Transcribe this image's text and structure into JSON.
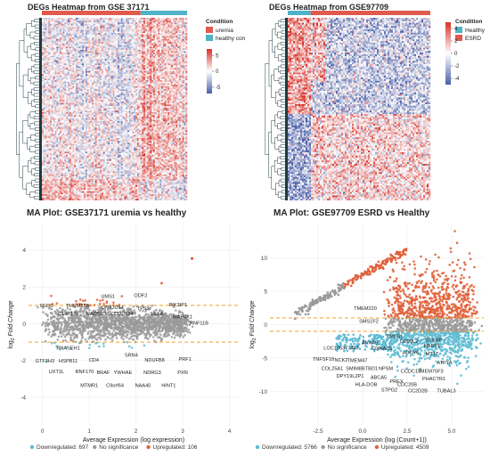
{
  "chart_data": [
    {
      "type": "heatmap",
      "title": "DEGs Heatmap from GSE 37171",
      "legend_title": "Condition",
      "legend": [
        {
          "label": "uremia",
          "color": "#e05a4e"
        },
        {
          "label": "healthy control",
          "color": "#4fb3c8"
        }
      ],
      "colorbar_ticks": [
        5,
        0,
        -5
      ],
      "colorbar_range": [
        -7,
        7
      ],
      "condition_split": 0.68,
      "colors": {
        "high": "#d73027",
        "mid": "#ffffff",
        "low": "#4a5fa8"
      }
    },
    {
      "type": "heatmap",
      "title": "DEGs Heatmap from GSE97709",
      "legend_title": "Condition",
      "legend": [
        {
          "label": "Healthy",
          "color": "#4fb3c8"
        },
        {
          "label": "ESRD",
          "color": "#e05a4e"
        }
      ],
      "colorbar_ticks": [
        4,
        2,
        0,
        -2,
        -4
      ],
      "colorbar_range": [
        -5,
        5
      ],
      "condition_split": 0.16,
      "colors": {
        "high": "#d73027",
        "mid": "#ffffff",
        "low": "#4a5fa8"
      }
    },
    {
      "type": "scatter",
      "title": "MA Plot: GSE37171 uremia vs healthy",
      "xlabel": "Average Expression (log expression)",
      "ylabel_main": "log",
      "ylabel_sub": "2",
      "ylabel_rest": " Fold Change",
      "xlim": [
        -0.3,
        4.2
      ],
      "ylim": [
        -5.5,
        5.4
      ],
      "xticks": [
        0,
        1,
        2,
        3,
        4
      ],
      "yticks": [
        -4,
        -2,
        0,
        2,
        4
      ],
      "thresholds": [
        1,
        -1
      ],
      "legend": [
        {
          "label": "Downregulated: 697",
          "color": "#5fbcd3"
        },
        {
          "label": "No significance",
          "color": "#999999"
        },
        {
          "label": "Upregulated: 106",
          "color": "#e0613a"
        }
      ],
      "annotations": [
        {
          "label": "UMS1",
          "x": 1.4,
          "y": 1.4
        },
        {
          "label": "ODF2",
          "x": 2.1,
          "y": 1.45
        },
        {
          "label": "PIK3IP1",
          "x": 2.9,
          "y": 0.95
        },
        {
          "label": "TGDS",
          "x": 0.08,
          "y": 0.9
        },
        {
          "label": "TMEM33B",
          "x": 0.75,
          "y": 0.9
        },
        {
          "label": "DNAJC14",
          "x": 1.5,
          "y": 0.8
        },
        {
          "label": "TP53",
          "x": 2.15,
          "y": 0.75
        },
        {
          "label": "C1orf174",
          "x": 0.55,
          "y": 0.45
        },
        {
          "label": "RAD51D",
          "x": 1.15,
          "y": 0.45
        },
        {
          "label": "CCDC134",
          "x": 1.7,
          "y": 0.45
        },
        {
          "label": "RELA",
          "x": 2.45,
          "y": 0.45
        },
        {
          "label": "MAP4K1",
          "x": 3.0,
          "y": 0.3
        },
        {
          "label": "RNF11B",
          "x": 3.35,
          "y": -0.05
        },
        {
          "label": "RNASEH1",
          "x": 0.55,
          "y": -1.4
        },
        {
          "label": "HSPB11",
          "x": 0.55,
          "y": -2.1
        },
        {
          "label": "GTF2H3",
          "x": 0.05,
          "y": -2.1
        },
        {
          "label": "CD4",
          "x": 1.1,
          "y": -2.05
        },
        {
          "label": "SRN4",
          "x": 1.9,
          "y": -1.8
        },
        {
          "label": "NDUFB8",
          "x": 2.4,
          "y": -2.05
        },
        {
          "label": "PRF1",
          "x": 3.05,
          "y": -2.0
        },
        {
          "label": "UXT1L",
          "x": 0.3,
          "y": -2.7
        },
        {
          "label": "RNF170",
          "x": 0.9,
          "y": -2.7
        },
        {
          "label": "BRAF",
          "x": 1.3,
          "y": -2.75
        },
        {
          "label": "YWHAE",
          "x": 1.72,
          "y": -2.75
        },
        {
          "label": "NDRG3",
          "x": 2.35,
          "y": -2.75
        },
        {
          "label": "PXN",
          "x": 3.0,
          "y": -2.75
        },
        {
          "label": "MTMR1",
          "x": 1.0,
          "y": -3.45
        },
        {
          "label": "C9orf64",
          "x": 1.55,
          "y": -3.45
        },
        {
          "label": "NAA40",
          "x": 2.15,
          "y": -3.45
        },
        {
          "label": "HINT1",
          "x": 2.7,
          "y": -3.45
        }
      ]
    },
    {
      "type": "scatter",
      "title": "MA Plot: GSE97709 ESRD vs Healthy",
      "xlabel": "Average Expression (log (Count+1))",
      "ylabel_main": "log",
      "ylabel_sub": "2",
      "ylabel_rest": " Fold Change",
      "xlim": [
        -5.2,
        6.8
      ],
      "ylim": [
        -15,
        15
      ],
      "xticks": [
        -2.5,
        0.0,
        2.5,
        5.0
      ],
      "xtick_labels": [
        "-2.5",
        "0.0",
        "2.5",
        "5.0"
      ],
      "yticks": [
        -10,
        -5,
        0,
        5,
        10
      ],
      "thresholds": [
        1,
        -1
      ],
      "legend": [
        {
          "label": "Downregulated: 5766",
          "color": "#5fbcd3"
        },
        {
          "label": "No significance",
          "color": "#999999"
        },
        {
          "label": "Upregulated: 4509",
          "color": "#e0613a"
        }
      ],
      "annotations": [
        {
          "label": "TMEM220",
          "x": 0.15,
          "y": 2.2
        },
        {
          "label": "SMS1F2",
          "x": 0.35,
          "y": 0.3
        },
        {
          "label": "TMES1",
          "x": 1.8,
          "y": -2.0
        },
        {
          "label": "CD99L2",
          "x": 2.6,
          "y": -2.7
        },
        {
          "label": "SLX4IP",
          "x": 4.0,
          "y": -2.5
        },
        {
          "label": "ANXA8",
          "x": 0.4,
          "y": -2.9
        },
        {
          "label": "HSBP1",
          "x": 3.9,
          "y": -3.4
        },
        {
          "label": "LOC105377447",
          "x": -1.2,
          "y": -3.7
        },
        {
          "label": "OXNAD1",
          "x": 1.1,
          "y": -3.8
        },
        {
          "label": "ADCY6",
          "x": 2.7,
          "y": -4.4
        },
        {
          "label": "MT1T",
          "x": 3.9,
          "y": -4.6
        },
        {
          "label": "TNFSF18",
          "x": -2.2,
          "y": -5.4
        },
        {
          "label": "NCK2",
          "x": -1.2,
          "y": -5.5
        },
        {
          "label": "TMEM47",
          "x": -0.3,
          "y": -5.6
        },
        {
          "label": "ATP7A",
          "x": 4.6,
          "y": -5.9
        },
        {
          "label": "COL25A1",
          "x": -1.7,
          "y": -6.8
        },
        {
          "label": "SMIM8",
          "x": -0.5,
          "y": -6.8
        },
        {
          "label": "BTBD1",
          "x": 0.4,
          "y": -6.8
        },
        {
          "label": "NPSM",
          "x": 1.3,
          "y": -6.8
        },
        {
          "label": "CCDC13",
          "x": 2.7,
          "y": -7.2
        },
        {
          "label": "TMEM75F3",
          "x": 3.8,
          "y": -7.2
        },
        {
          "label": "DPY19L2P1",
          "x": -0.7,
          "y": -7.9
        },
        {
          "label": "ABCA5",
          "x": 0.9,
          "y": -8.1
        },
        {
          "label": "PHACTR1",
          "x": 4.0,
          "y": -8.3
        },
        {
          "label": "PREX",
          "x": 1.9,
          "y": -8.7
        },
        {
          "label": "HLA-DOB",
          "x": 0.2,
          "y": -9.2
        },
        {
          "label": "CDC20B",
          "x": 2.5,
          "y": -9.2
        },
        {
          "label": "STPG2",
          "x": 1.5,
          "y": -10.0
        },
        {
          "label": "CC2D2B",
          "x": 3.1,
          "y": -10.1
        },
        {
          "label": "TUBAL3",
          "x": 4.7,
          "y": -10.1
        }
      ]
    }
  ]
}
